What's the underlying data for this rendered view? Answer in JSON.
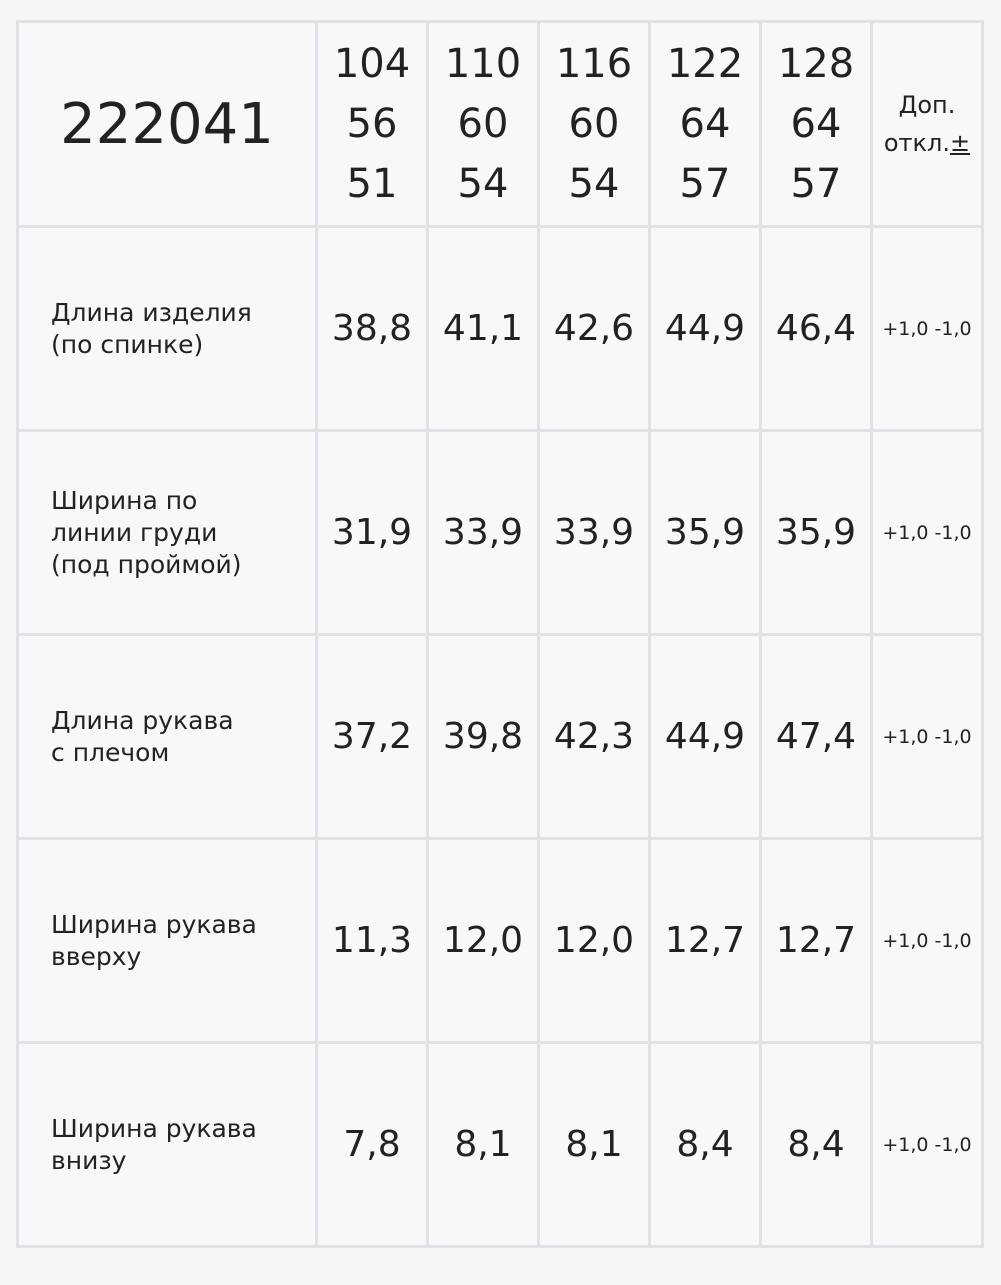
{
  "article": "222041",
  "sizes": [
    [
      "104",
      "56",
      "51"
    ],
    [
      "110",
      "60",
      "54"
    ],
    [
      "116",
      "60",
      "54"
    ],
    [
      "122",
      "64",
      "57"
    ],
    [
      "128",
      "64",
      "57"
    ]
  ],
  "tolerance_header": {
    "line1": "Доп.",
    "line2": "откл.",
    "symbol": "±"
  },
  "rows": [
    {
      "label": [
        "Длина изделия",
        "(по спинке)"
      ],
      "values": [
        "38,8",
        "41,1",
        "42,6",
        "44,9",
        "46,4"
      ],
      "tol": "+1,0 -1,0"
    },
    {
      "label": [
        "Ширина по",
        "линии груди",
        "(под проймой)"
      ],
      "values": [
        "31,9",
        "33,9",
        "33,9",
        "35,9",
        "35,9"
      ],
      "tol": "+1,0 -1,0"
    },
    {
      "label": [
        "Длина рукава",
        "с плечом"
      ],
      "values": [
        "37,2",
        "39,8",
        "42,3",
        "44,9",
        "47,4"
      ],
      "tol": "+1,0 -1,0"
    },
    {
      "label": [
        "Ширина рукава",
        "вверху"
      ],
      "values": [
        "11,3",
        "12,0",
        "12,0",
        "12,7",
        "12,7"
      ],
      "tol": "+1,0 -1,0"
    },
    {
      "label": [
        "Ширина рукава",
        "внизу"
      ],
      "values": [
        "7,8",
        "8,1",
        "8,1",
        "8,4",
        "8,4"
      ],
      "tol": "+1,0 -1,0"
    }
  ]
}
